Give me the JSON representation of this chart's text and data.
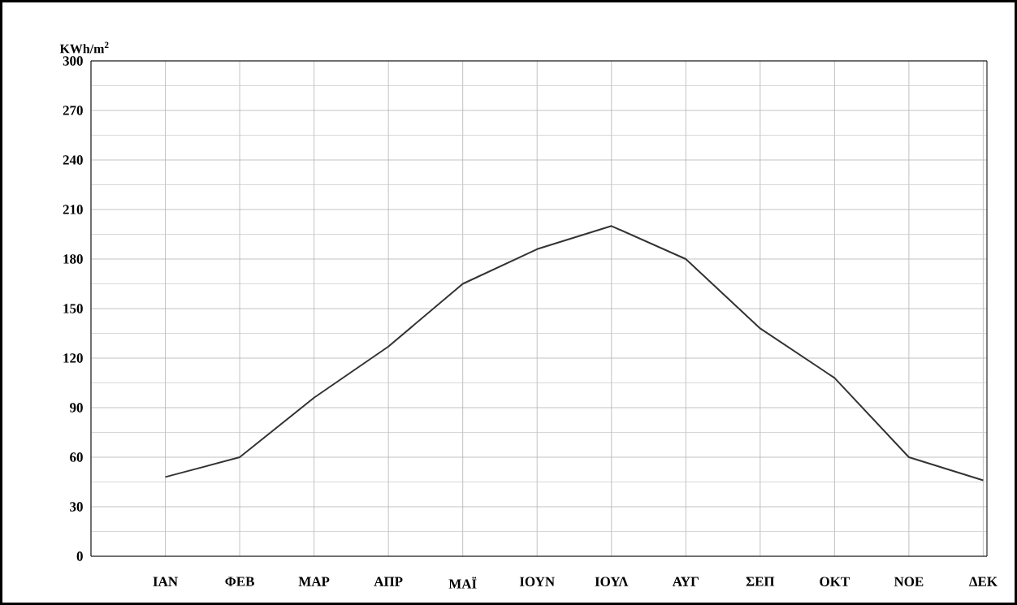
{
  "chart_data": {
    "type": "line",
    "ylabel": "KWh/m$^{2}$",
    "categories": [
      "ΙΑΝ",
      "ΦΕΒ",
      "ΜΑΡ",
      "ΑΠΡ",
      "ΜΑΪ",
      "ΙΟΥΝ",
      "ΙΟΥΛ",
      "ΑΥΓ",
      "ΣΕΠ",
      "ΟΚΤ",
      "ΝΟΕ",
      "ΔΕΚ"
    ],
    "values": [
      48,
      60,
      96,
      127,
      165,
      186,
      200,
      180,
      138,
      108,
      60,
      46
    ],
    "color": "#333333",
    "ylim": [
      0,
      300
    ],
    "yticks": [
      0,
      30,
      60,
      90,
      120,
      150,
      180,
      210,
      240,
      270,
      300
    ],
    "grid": true,
    "marker": "none",
    "line_style": "solid"
  }
}
